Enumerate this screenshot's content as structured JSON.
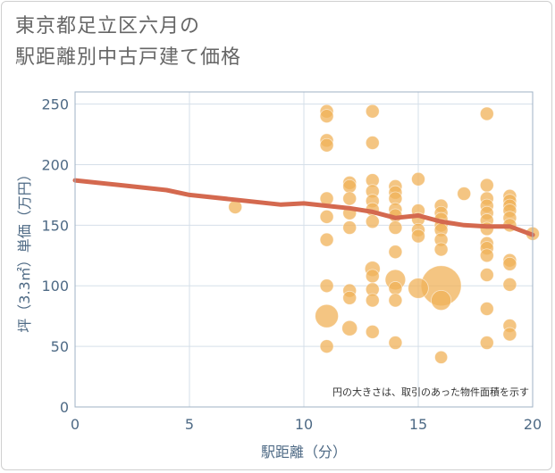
{
  "title_line1": "東京都足立区六月の",
  "title_line2": "駅距離別中古戸建て価格",
  "chart_data": {
    "type": "scatter",
    "title": "東京都足立区六月の 駅距離別中古戸建て価格",
    "xlabel": "駅距離（分）",
    "ylabel": "坪（3.3㎡）単価（万円）",
    "xlim": [
      0,
      20
    ],
    "ylim": [
      0,
      260
    ],
    "xticks": [
      0,
      5,
      10,
      15,
      20
    ],
    "yticks": [
      0,
      50,
      100,
      150,
      200,
      250
    ],
    "grid": true,
    "annotation": "円の大きさは、取引のあった物件面積を示す",
    "colors": {
      "bubble": "#f0b158",
      "trend": "#d4694f",
      "axis_text": "#4e6a85"
    },
    "bubbles": [
      {
        "x": 7,
        "y": 165,
        "s": 1
      },
      {
        "x": 11,
        "y": 244,
        "s": 1
      },
      {
        "x": 11,
        "y": 240,
        "s": 1
      },
      {
        "x": 11,
        "y": 220,
        "s": 1
      },
      {
        "x": 11,
        "y": 216,
        "s": 1
      },
      {
        "x": 11,
        "y": 172,
        "s": 1
      },
      {
        "x": 11,
        "y": 157,
        "s": 1
      },
      {
        "x": 11,
        "y": 138,
        "s": 1
      },
      {
        "x": 11,
        "y": 100,
        "s": 1
      },
      {
        "x": 11,
        "y": 75,
        "s": 3
      },
      {
        "x": 11,
        "y": 50,
        "s": 1
      },
      {
        "x": 12,
        "y": 185,
        "s": 1
      },
      {
        "x": 12,
        "y": 182,
        "s": 1
      },
      {
        "x": 12,
        "y": 172,
        "s": 1
      },
      {
        "x": 12,
        "y": 160,
        "s": 1
      },
      {
        "x": 12,
        "y": 148,
        "s": 1
      },
      {
        "x": 12,
        "y": 96,
        "s": 1
      },
      {
        "x": 12,
        "y": 90,
        "s": 1
      },
      {
        "x": 12,
        "y": 65,
        "s": 1.3
      },
      {
        "x": 13,
        "y": 244,
        "s": 1
      },
      {
        "x": 13,
        "y": 218,
        "s": 1
      },
      {
        "x": 13,
        "y": 187,
        "s": 1
      },
      {
        "x": 13,
        "y": 178,
        "s": 1
      },
      {
        "x": 13,
        "y": 170,
        "s": 1
      },
      {
        "x": 13,
        "y": 163,
        "s": 1
      },
      {
        "x": 13,
        "y": 153,
        "s": 1
      },
      {
        "x": 13,
        "y": 114,
        "s": 1.3
      },
      {
        "x": 13,
        "y": 108,
        "s": 1
      },
      {
        "x": 13,
        "y": 97,
        "s": 1
      },
      {
        "x": 13,
        "y": 88,
        "s": 1
      },
      {
        "x": 13,
        "y": 62,
        "s": 1
      },
      {
        "x": 14,
        "y": 182,
        "s": 1
      },
      {
        "x": 14,
        "y": 177,
        "s": 1
      },
      {
        "x": 14,
        "y": 172,
        "s": 1
      },
      {
        "x": 14,
        "y": 163,
        "s": 1
      },
      {
        "x": 14,
        "y": 158,
        "s": 1
      },
      {
        "x": 14,
        "y": 148,
        "s": 1
      },
      {
        "x": 14,
        "y": 128,
        "s": 1
      },
      {
        "x": 14,
        "y": 105,
        "s": 2.3
      },
      {
        "x": 14,
        "y": 98,
        "s": 1
      },
      {
        "x": 14,
        "y": 88,
        "s": 1
      },
      {
        "x": 14,
        "y": 53,
        "s": 1
      },
      {
        "x": 15,
        "y": 188,
        "s": 1
      },
      {
        "x": 15,
        "y": 162,
        "s": 1
      },
      {
        "x": 15,
        "y": 155,
        "s": 1
      },
      {
        "x": 15,
        "y": 146,
        "s": 1
      },
      {
        "x": 15,
        "y": 141,
        "s": 1
      },
      {
        "x": 15,
        "y": 98,
        "s": 2.3
      },
      {
        "x": 16,
        "y": 166,
        "s": 1
      },
      {
        "x": 16,
        "y": 160,
        "s": 1
      },
      {
        "x": 16,
        "y": 155,
        "s": 1
      },
      {
        "x": 16,
        "y": 150,
        "s": 1
      },
      {
        "x": 16,
        "y": 146,
        "s": 1
      },
      {
        "x": 16,
        "y": 138,
        "s": 1
      },
      {
        "x": 16,
        "y": 130,
        "s": 1
      },
      {
        "x": 16,
        "y": 100,
        "s": 9
      },
      {
        "x": 16,
        "y": 88,
        "s": 2.2
      },
      {
        "x": 16,
        "y": 41,
        "s": 0.9
      },
      {
        "x": 17,
        "y": 176,
        "s": 1
      },
      {
        "x": 18,
        "y": 242,
        "s": 1
      },
      {
        "x": 18,
        "y": 183,
        "s": 1
      },
      {
        "x": 18,
        "y": 172,
        "s": 1
      },
      {
        "x": 18,
        "y": 166,
        "s": 1
      },
      {
        "x": 18,
        "y": 160,
        "s": 1
      },
      {
        "x": 18,
        "y": 154,
        "s": 1
      },
      {
        "x": 18,
        "y": 147,
        "s": 1
      },
      {
        "x": 18,
        "y": 135,
        "s": 1
      },
      {
        "x": 18,
        "y": 131,
        "s": 1
      },
      {
        "x": 18,
        "y": 125,
        "s": 1
      },
      {
        "x": 18,
        "y": 109,
        "s": 1
      },
      {
        "x": 18,
        "y": 81,
        "s": 1
      },
      {
        "x": 18,
        "y": 53,
        "s": 1
      },
      {
        "x": 19,
        "y": 174,
        "s": 1
      },
      {
        "x": 19,
        "y": 170,
        "s": 1
      },
      {
        "x": 19,
        "y": 166,
        "s": 1
      },
      {
        "x": 19,
        "y": 162,
        "s": 1
      },
      {
        "x": 19,
        "y": 156,
        "s": 1
      },
      {
        "x": 19,
        "y": 150,
        "s": 1
      },
      {
        "x": 19,
        "y": 121,
        "s": 1
      },
      {
        "x": 19,
        "y": 118,
        "s": 1
      },
      {
        "x": 19,
        "y": 101,
        "s": 1
      },
      {
        "x": 19,
        "y": 67,
        "s": 1
      },
      {
        "x": 19,
        "y": 60,
        "s": 1
      },
      {
        "x": 20,
        "y": 143,
        "s": 1
      }
    ],
    "trend": {
      "x": [
        0,
        2,
        4,
        5,
        7,
        9,
        10,
        11,
        12,
        13,
        14,
        15,
        16,
        17,
        18,
        19,
        20
      ],
      "y": [
        187,
        183,
        179,
        175,
        171,
        167,
        168,
        166,
        164,
        161,
        156,
        158,
        153,
        150,
        149,
        149,
        142
      ]
    }
  }
}
